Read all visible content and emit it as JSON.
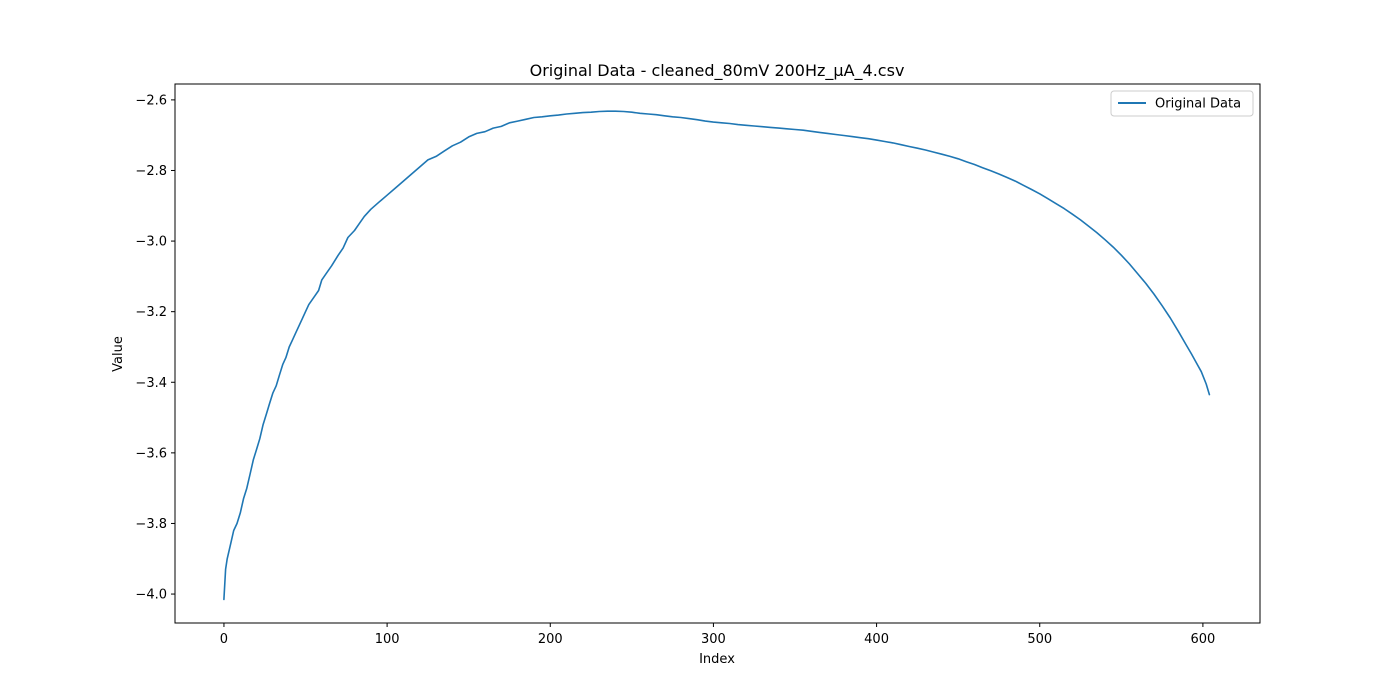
{
  "chart_data": {
    "type": "line",
    "title": "Original Data - cleaned_80mV 200Hz_µA_4.csv",
    "xlabel": "Index",
    "ylabel": "Value",
    "xlim": [
      -30,
      635
    ],
    "ylim": [
      -4.082,
      -2.555
    ],
    "xticks": [
      0,
      100,
      200,
      300,
      400,
      500,
      600
    ],
    "xtick_labels": [
      "0",
      "100",
      "200",
      "300",
      "400",
      "500",
      "600"
    ],
    "yticks": [
      -4.0,
      -3.8,
      -3.6,
      -3.4,
      -3.2,
      -3.0,
      -2.8,
      -2.6
    ],
    "ytick_labels": [
      "−4.0",
      "−3.8",
      "−3.6",
      "−3.4",
      "−3.2",
      "−3.0",
      "−2.8",
      "−2.6"
    ],
    "grid": false,
    "legend": {
      "position": "top-right",
      "entries": [
        "Original Data"
      ]
    },
    "series": [
      {
        "name": "Original Data",
        "color": "#1f77b4",
        "x": [
          0,
          1,
          2,
          4,
          6,
          8,
          10,
          12,
          14,
          16,
          18,
          20,
          22,
          24,
          26,
          28,
          30,
          32,
          34,
          36,
          38,
          40,
          42,
          44,
          46,
          48,
          50,
          52,
          55,
          58,
          60,
          63,
          66,
          70,
          73,
          76,
          80,
          83,
          86,
          90,
          95,
          100,
          105,
          110,
          115,
          120,
          125,
          130,
          135,
          140,
          145,
          150,
          155,
          160,
          165,
          170,
          175,
          180,
          185,
          190,
          195,
          200,
          205,
          210,
          215,
          220,
          225,
          230,
          235,
          240,
          245,
          250,
          255,
          260,
          265,
          270,
          275,
          280,
          285,
          290,
          295,
          300,
          305,
          310,
          315,
          320,
          325,
          330,
          335,
          340,
          345,
          350,
          355,
          360,
          365,
          370,
          375,
          380,
          385,
          390,
          395,
          400,
          405,
          410,
          415,
          420,
          425,
          430,
          435,
          440,
          445,
          450,
          455,
          460,
          465,
          470,
          475,
          480,
          485,
          490,
          495,
          500,
          505,
          510,
          515,
          520,
          525,
          530,
          535,
          540,
          545,
          550,
          555,
          560,
          565,
          570,
          575,
          580,
          585,
          590,
          593,
          596,
          599,
          602,
          604
        ],
        "y": [
          -4.015,
          -3.93,
          -3.9,
          -3.86,
          -3.82,
          -3.8,
          -3.77,
          -3.73,
          -3.7,
          -3.66,
          -3.62,
          -3.59,
          -3.56,
          -3.52,
          -3.49,
          -3.46,
          -3.43,
          -3.41,
          -3.38,
          -3.35,
          -3.33,
          -3.3,
          -3.28,
          -3.26,
          -3.24,
          -3.22,
          -3.2,
          -3.18,
          -3.16,
          -3.14,
          -3.11,
          -3.09,
          -3.07,
          -3.04,
          -3.02,
          -2.99,
          -2.97,
          -2.95,
          -2.93,
          -2.91,
          -2.89,
          -2.87,
          -2.85,
          -2.83,
          -2.81,
          -2.79,
          -2.77,
          -2.76,
          -2.745,
          -2.73,
          -2.72,
          -2.705,
          -2.695,
          -2.69,
          -2.68,
          -2.675,
          -2.665,
          -2.66,
          -2.655,
          -2.65,
          -2.648,
          -2.645,
          -2.643,
          -2.64,
          -2.638,
          -2.636,
          -2.635,
          -2.633,
          -2.632,
          -2.632,
          -2.633,
          -2.635,
          -2.638,
          -2.64,
          -2.642,
          -2.645,
          -2.648,
          -2.65,
          -2.653,
          -2.656,
          -2.66,
          -2.663,
          -2.665,
          -2.667,
          -2.67,
          -2.672,
          -2.674,
          -2.676,
          -2.678,
          -2.68,
          -2.682,
          -2.684,
          -2.686,
          -2.689,
          -2.692,
          -2.695,
          -2.698,
          -2.701,
          -2.704,
          -2.707,
          -2.71,
          -2.714,
          -2.718,
          -2.722,
          -2.727,
          -2.732,
          -2.737,
          -2.742,
          -2.748,
          -2.754,
          -2.76,
          -2.767,
          -2.775,
          -2.783,
          -2.792,
          -2.801,
          -2.81,
          -2.82,
          -2.83,
          -2.842,
          -2.854,
          -2.866,
          -2.88,
          -2.894,
          -2.908,
          -2.924,
          -2.94,
          -2.958,
          -2.976,
          -2.996,
          -3.017,
          -3.04,
          -3.065,
          -3.092,
          -3.12,
          -3.15,
          -3.183,
          -3.218,
          -3.256,
          -3.296,
          -3.32,
          -3.345,
          -3.37,
          -3.405,
          -3.435
        ]
      }
    ]
  }
}
